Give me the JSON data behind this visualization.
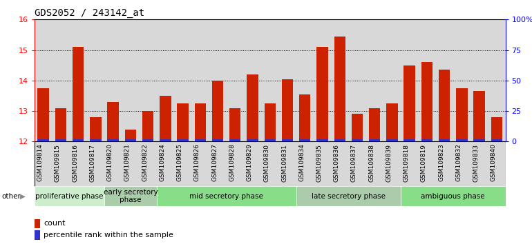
{
  "title": "GDS2052 / 243142_at",
  "samples": [
    "GSM109814",
    "GSM109815",
    "GSM109816",
    "GSM109817",
    "GSM109820",
    "GSM109821",
    "GSM109822",
    "GSM109824",
    "GSM109825",
    "GSM109826",
    "GSM109827",
    "GSM109828",
    "GSM109829",
    "GSM109830",
    "GSM109831",
    "GSM109834",
    "GSM109835",
    "GSM109836",
    "GSM109837",
    "GSM109838",
    "GSM109839",
    "GSM109818",
    "GSM109819",
    "GSM109823",
    "GSM109832",
    "GSM109833",
    "GSM109840"
  ],
  "count_values": [
    13.75,
    13.1,
    15.1,
    12.8,
    13.3,
    12.4,
    13.0,
    13.5,
    13.25,
    13.25,
    14.0,
    13.1,
    14.2,
    13.25,
    14.05,
    13.55,
    15.1,
    15.45,
    12.9,
    13.1,
    13.25,
    14.5,
    14.6,
    14.35,
    13.75,
    13.65,
    12.8
  ],
  "percentile_values": [
    0.08,
    0.08,
    0.08,
    0.08,
    0.08,
    0.08,
    0.08,
    0.08,
    0.08,
    0.08,
    0.08,
    0.08,
    0.08,
    0.08,
    0.08,
    0.08,
    0.08,
    0.08,
    0.08,
    0.08,
    0.08,
    0.08,
    0.08,
    0.08,
    0.08,
    0.08,
    0.08
  ],
  "bar_base": 12.0,
  "ylim_left": [
    12.0,
    16.0
  ],
  "ylim_right": [
    0,
    100
  ],
  "yticks_left": [
    12,
    13,
    14,
    15,
    16
  ],
  "yticks_right": [
    0,
    25,
    50,
    75,
    100
  ],
  "yticklabels_right": [
    "0",
    "25",
    "50",
    "75",
    "100%"
  ],
  "count_color": "#cc2200",
  "percentile_color": "#3333cc",
  "bar_width": 0.65,
  "phases": [
    {
      "label": "proliferative phase",
      "start": 0,
      "end": 4,
      "color": "#cceecc"
    },
    {
      "label": "early secretory\nphase",
      "start": 4,
      "end": 7,
      "color": "#aaccaa"
    },
    {
      "label": "mid secretory phase",
      "start": 7,
      "end": 15,
      "color": "#88dd88"
    },
    {
      "label": "late secretory phase",
      "start": 15,
      "end": 21,
      "color": "#aaccaa"
    },
    {
      "label": "ambiguous phase",
      "start": 21,
      "end": 27,
      "color": "#88dd88"
    }
  ],
  "other_label": "other",
  "background_color": "#d8d8d8",
  "title_fontsize": 10,
  "tick_fontsize": 6.5,
  "phase_fontsize": 7.5
}
